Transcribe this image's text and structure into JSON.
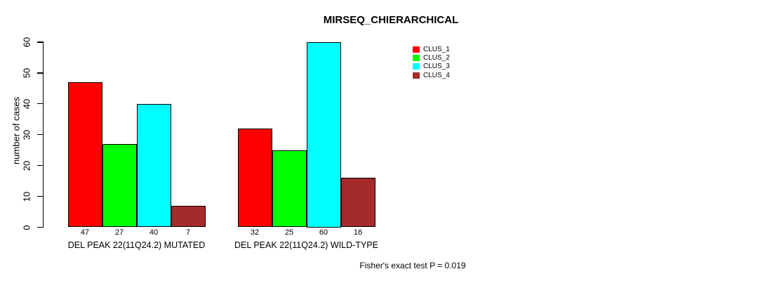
{
  "chart_data": {
    "type": "bar",
    "title": "MIRSEQ_CHIERARCHICAL",
    "ylabel": "number of cases",
    "xlabel": "",
    "categories": [
      "DEL PEAK 22(11Q24.2) MUTATED",
      "DEL PEAK 22(11Q24.2) WILD-TYPE"
    ],
    "series": [
      {
        "name": "CLUS_1",
        "color": "#ff0000",
        "values": [
          47,
          32
        ]
      },
      {
        "name": "CLUS_2",
        "color": "#00ff00",
        "values": [
          27,
          25
        ]
      },
      {
        "name": "CLUS_3",
        "color": "#00ffff",
        "values": [
          40,
          60
        ]
      },
      {
        "name": "CLUS_4",
        "color": "#a52a2a",
        "values": [
          7,
          16
        ]
      }
    ],
    "yticks": [
      0,
      10,
      20,
      30,
      40,
      50,
      60
    ],
    "ylim": [
      0,
      60
    ],
    "grid": false,
    "legend_position": "top-right",
    "bar_value_labels": true,
    "annotation": "Fisher's exact test P = 0.019"
  }
}
